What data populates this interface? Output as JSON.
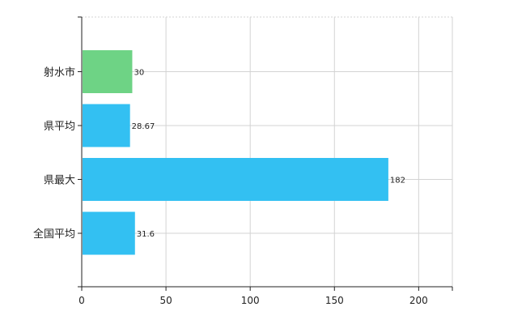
{
  "chart_data": {
    "type": "bar",
    "orientation": "horizontal",
    "categories": [
      "射水市",
      "県平均",
      "県最大",
      "全国平均"
    ],
    "values": [
      30,
      28.67,
      182,
      31.6
    ],
    "data_labels": [
      "30",
      "28.67",
      "182",
      "31.6"
    ],
    "bar_colors": [
      "#6ed385",
      "#33c0f2",
      "#33c0f2",
      "#33c0f2"
    ],
    "xlim": [
      0,
      220
    ],
    "x_ticks": [
      0,
      50,
      100,
      150,
      200
    ],
    "grid": true,
    "title": "",
    "xlabel": "",
    "ylabel": ""
  }
}
